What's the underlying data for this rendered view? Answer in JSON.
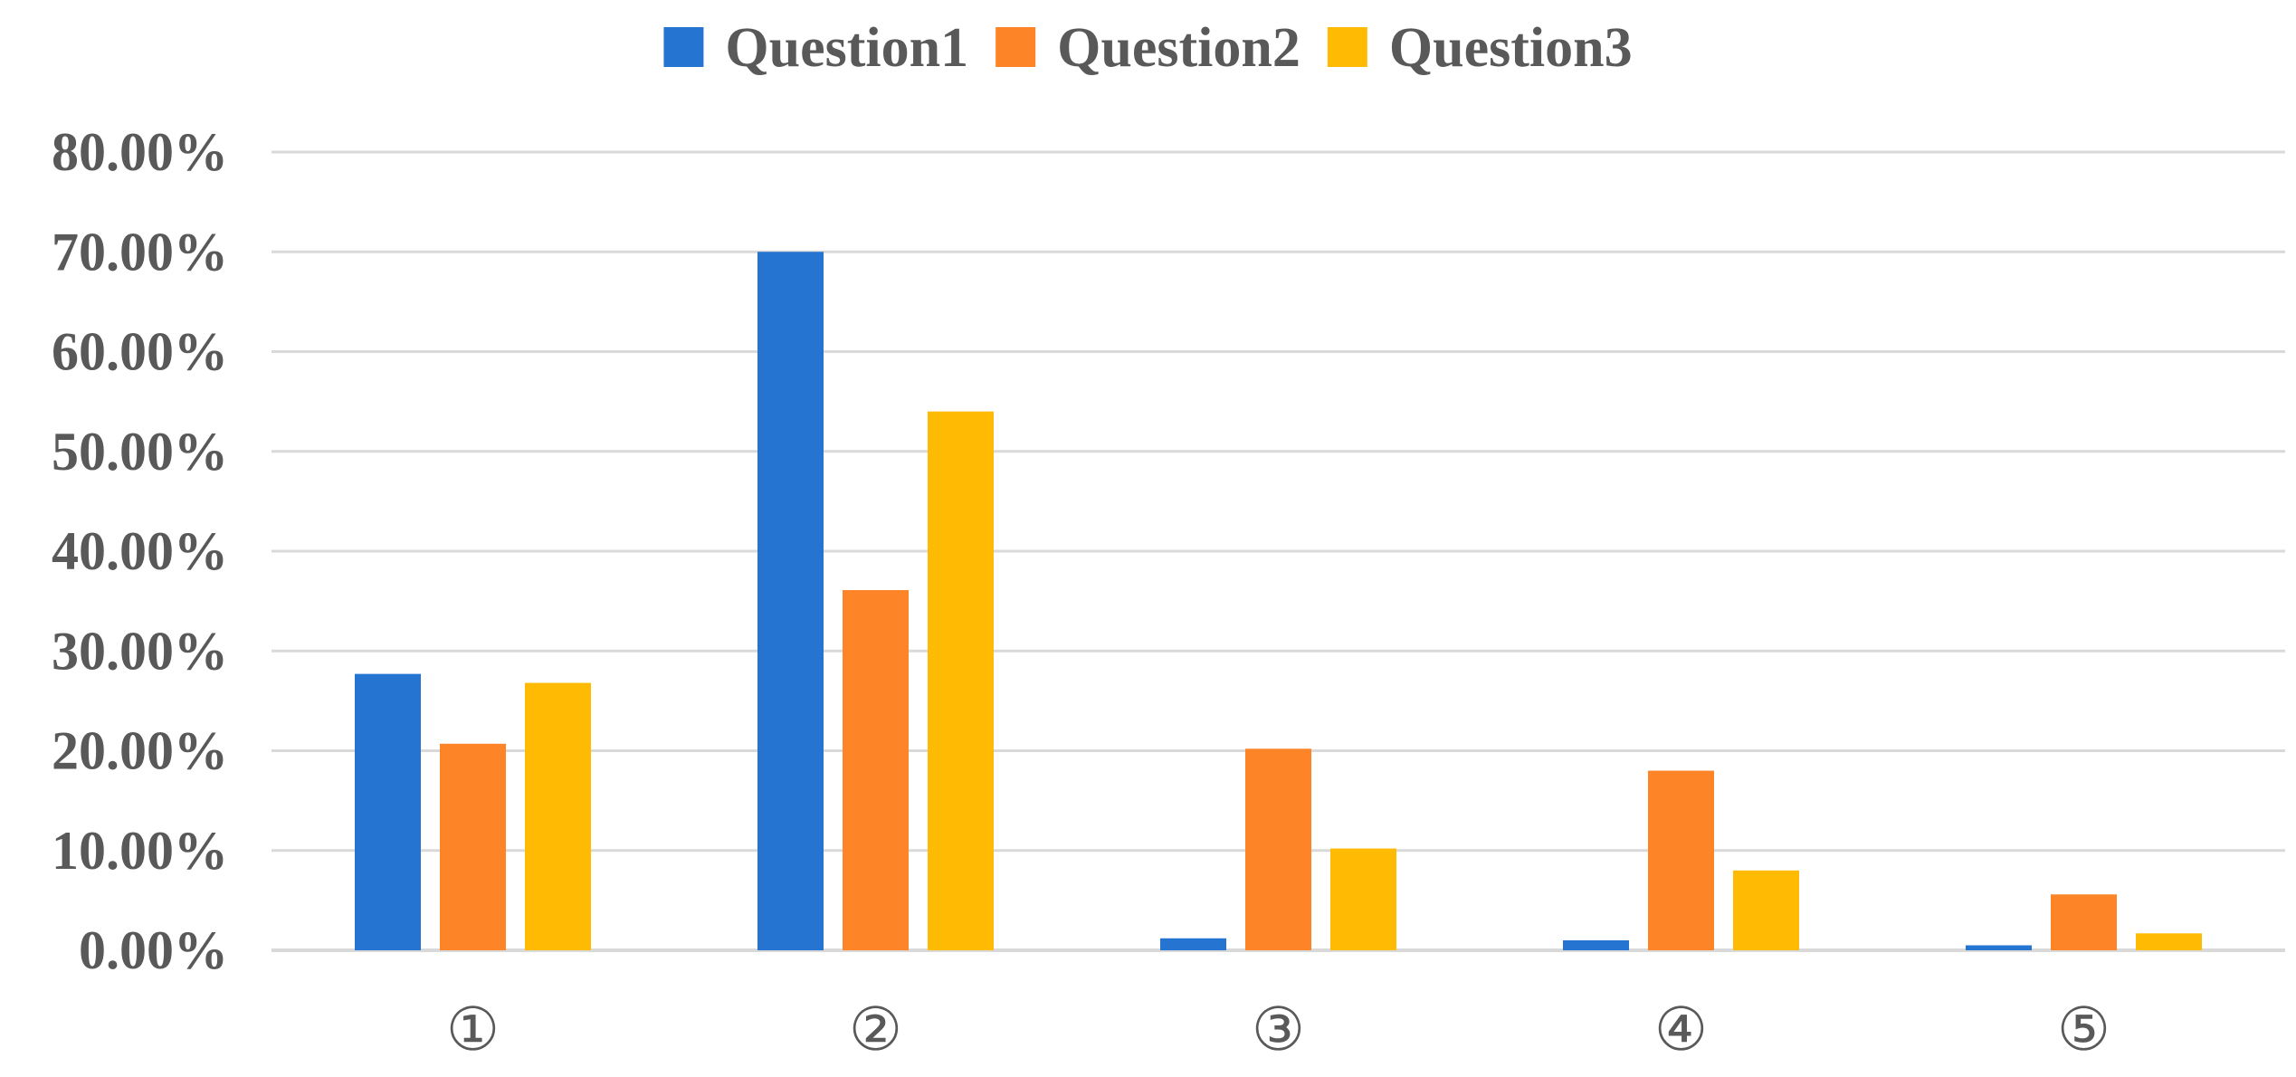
{
  "chart_data": {
    "type": "bar",
    "categories": [
      "①",
      "②",
      "③",
      "④",
      "⑤"
    ],
    "series": [
      {
        "name": "Question1",
        "color": "#2574D2",
        "values": [
          27.7,
          70.0,
          1.2,
          1.0,
          0.5
        ]
      },
      {
        "name": "Question2",
        "color": "#FD8527",
        "values": [
          20.7,
          36.1,
          20.2,
          18.0,
          5.6
        ]
      },
      {
        "name": "Question3",
        "color": "#FFBA04",
        "values": [
          26.8,
          54.0,
          10.2,
          8.0,
          1.7
        ]
      }
    ],
    "y_ticks": [
      "0.00%",
      "10.00%",
      "20.00%",
      "30.00%",
      "40.00%",
      "50.00%",
      "60.00%",
      "70.00%",
      "80.00%"
    ],
    "ylim": [
      0,
      80
    ],
    "grid": true,
    "legend_position": "top-center",
    "gridline_color": "#D9D9D9",
    "text_color": "#595959"
  }
}
